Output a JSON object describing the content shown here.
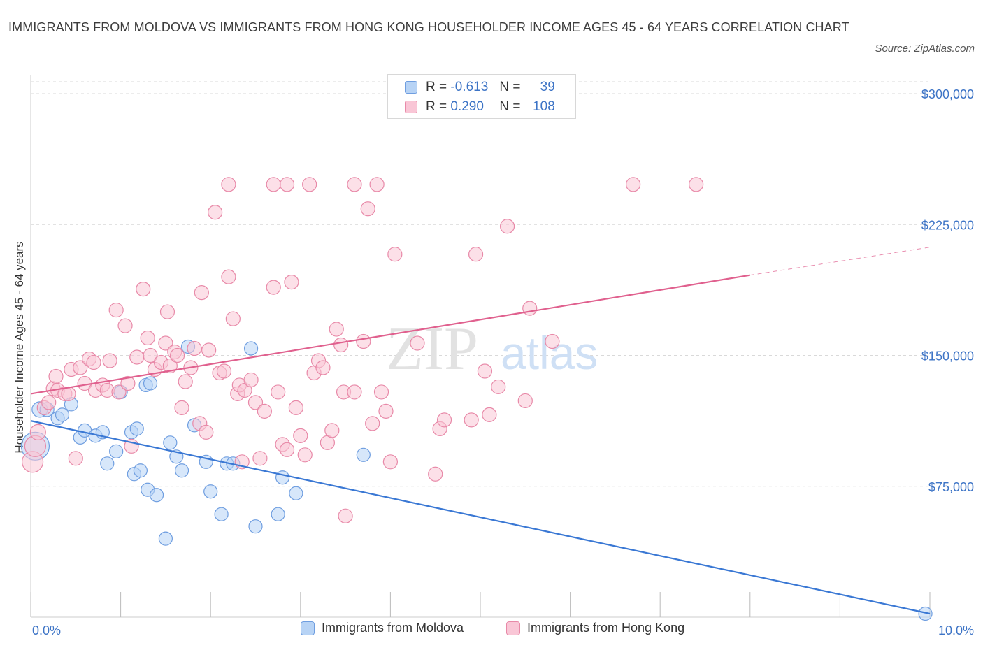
{
  "title": "IMMIGRANTS FROM MOLDOVA VS IMMIGRANTS FROM HONG KONG HOUSEHOLDER INCOME AGES 45 - 64 YEARS CORRELATION CHART",
  "source": "Source: ZipAtlas.com",
  "watermark": "ZIPatlas",
  "legend": {
    "r_label": "R =",
    "n_label": "N =",
    "rows": [
      {
        "r": "-0.613",
        "n": "39",
        "fill": "#b7d3f5",
        "stroke": "#6f9ee0"
      },
      {
        "r": "0.290",
        "n": "108",
        "fill": "#f9c6d6",
        "stroke": "#e889a8"
      }
    ]
  },
  "colors": {
    "blue_line": "#3a78d4",
    "pink_line": "#e0608e",
    "axis_text": "#3d74c6",
    "grid": "#d9d9d9"
  },
  "chart_data": {
    "type": "scatter",
    "xlabel": "",
    "ylabel": "Householder Income Ages 45 - 64 years",
    "xlim": [
      0,
      10
    ],
    "ylim": [
      0,
      300000
    ],
    "x_tick_labels": [
      "0.0%",
      "10.0%"
    ],
    "y_tick_labels": [
      "$75,000",
      "$150,000",
      "$225,000",
      "$300,000"
    ],
    "y_ticks": [
      75000,
      150000,
      225000,
      300000
    ],
    "grid": true,
    "legend_position": "top-center",
    "series": [
      {
        "name": "Immigrants from Moldova",
        "color": "#6f9ee0",
        "fill": "#b7d3f5",
        "trend": {
          "x": [
            0,
            10
          ],
          "y": [
            112500,
            2000
          ]
        },
        "points": [
          [
            0.05,
            98000,
            34
          ],
          [
            0.1,
            119000,
            16
          ],
          [
            0.18,
            119000,
            14
          ],
          [
            0.3,
            114000,
            13
          ],
          [
            0.35,
            116000,
            13
          ],
          [
            0.45,
            122000,
            13
          ],
          [
            0.55,
            103000,
            13
          ],
          [
            0.6,
            107000,
            13
          ],
          [
            0.72,
            104000,
            13
          ],
          [
            0.8,
            106000,
            13
          ],
          [
            0.85,
            88000,
            13
          ],
          [
            0.95,
            95000,
            13
          ],
          [
            1.0,
            129000,
            13
          ],
          [
            1.12,
            106000,
            13
          ],
          [
            1.15,
            82000,
            13
          ],
          [
            1.18,
            108000,
            13
          ],
          [
            1.22,
            84000,
            13
          ],
          [
            1.28,
            133000,
            13
          ],
          [
            1.3,
            73000,
            13
          ],
          [
            1.4,
            70000,
            13
          ],
          [
            1.5,
            45000,
            13
          ],
          [
            1.55,
            100000,
            13
          ],
          [
            1.62,
            92000,
            13
          ],
          [
            1.68,
            84000,
            13
          ],
          [
            1.75,
            155000,
            13
          ],
          [
            1.82,
            110000,
            13
          ],
          [
            1.95,
            89000,
            13
          ],
          [
            2.0,
            72000,
            13
          ],
          [
            2.12,
            59000,
            13
          ],
          [
            2.18,
            88000,
            13
          ],
          [
            2.25,
            88000,
            13
          ],
          [
            2.45,
            154000,
            13
          ],
          [
            2.5,
            52000,
            13
          ],
          [
            2.75,
            59000,
            13
          ],
          [
            2.8,
            80000,
            13
          ],
          [
            2.95,
            71000,
            13
          ],
          [
            3.7,
            93000,
            13
          ],
          [
            9.95,
            2000,
            13
          ],
          [
            1.33,
            134000,
            13
          ]
        ]
      },
      {
        "name": "Immigrants from Hong Kong",
        "color": "#e889a8",
        "fill": "#f9c6d6",
        "trend": {
          "x": [
            0,
            8
          ],
          "y": [
            128000,
            196000
          ],
          "dash_to": [
            10,
            212000
          ]
        },
        "points": [
          [
            0.02,
            89000,
            24
          ],
          [
            0.05,
            98000,
            24
          ],
          [
            0.08,
            106000,
            16
          ],
          [
            0.15,
            120000,
            14
          ],
          [
            0.2,
            123000,
            14
          ],
          [
            0.25,
            131000,
            14
          ],
          [
            0.28,
            138000,
            14
          ],
          [
            0.3,
            130000,
            14
          ],
          [
            0.38,
            128000,
            14
          ],
          [
            0.42,
            128000,
            14
          ],
          [
            0.45,
            142000,
            14
          ],
          [
            0.5,
            91000,
            14
          ],
          [
            0.55,
            143000,
            14
          ],
          [
            0.6,
            134000,
            14
          ],
          [
            0.65,
            148000,
            14
          ],
          [
            0.7,
            146000,
            14
          ],
          [
            0.72,
            130000,
            14
          ],
          [
            0.8,
            133000,
            14
          ],
          [
            0.85,
            130000,
            14
          ],
          [
            0.88,
            147000,
            14
          ],
          [
            0.95,
            176000,
            14
          ],
          [
            0.98,
            129000,
            14
          ],
          [
            1.05,
            167000,
            14
          ],
          [
            1.08,
            134000,
            14
          ],
          [
            1.12,
            98000,
            14
          ],
          [
            1.18,
            149000,
            14
          ],
          [
            1.25,
            188000,
            14
          ],
          [
            1.3,
            160000,
            14
          ],
          [
            1.33,
            150000,
            14
          ],
          [
            1.38,
            142000,
            14
          ],
          [
            1.45,
            146000,
            14
          ],
          [
            1.5,
            157000,
            14
          ],
          [
            1.52,
            175000,
            14
          ],
          [
            1.55,
            144000,
            14
          ],
          [
            1.6,
            152000,
            14
          ],
          [
            1.63,
            150000,
            14
          ],
          [
            1.68,
            120000,
            14
          ],
          [
            1.72,
            135000,
            14
          ],
          [
            1.78,
            143000,
            14
          ],
          [
            1.82,
            154000,
            14
          ],
          [
            1.88,
            111000,
            14
          ],
          [
            1.9,
            186000,
            14
          ],
          [
            1.95,
            106000,
            14
          ],
          [
            1.98,
            153000,
            14
          ],
          [
            2.05,
            232000,
            14
          ],
          [
            2.1,
            140000,
            14
          ],
          [
            2.15,
            141000,
            14
          ],
          [
            2.2,
            195000,
            14
          ],
          [
            2.25,
            171000,
            14
          ],
          [
            2.3,
            128000,
            14
          ],
          [
            2.32,
            133000,
            14
          ],
          [
            2.35,
            89000,
            14
          ],
          [
            2.38,
            130000,
            14
          ],
          [
            2.45,
            136000,
            14
          ],
          [
            2.5,
            123000,
            14
          ],
          [
            2.55,
            91000,
            14
          ],
          [
            2.6,
            118000,
            14
          ],
          [
            2.7,
            189000,
            14
          ],
          [
            2.75,
            129000,
            14
          ],
          [
            2.8,
            99000,
            14
          ],
          [
            2.85,
            96000,
            14
          ],
          [
            2.9,
            192000,
            14
          ],
          [
            2.95,
            120000,
            14
          ],
          [
            3.0,
            104000,
            14
          ],
          [
            3.05,
            93000,
            14
          ],
          [
            3.15,
            140000,
            14
          ],
          [
            3.2,
            147000,
            14
          ],
          [
            3.25,
            143000,
            14
          ],
          [
            3.3,
            100000,
            14
          ],
          [
            3.35,
            107000,
            14
          ],
          [
            3.4,
            165000,
            14
          ],
          [
            3.45,
            156000,
            14
          ],
          [
            3.48,
            129000,
            14
          ],
          [
            3.5,
            58000,
            14
          ],
          [
            3.6,
            129000,
            14
          ],
          [
            3.7,
            158000,
            14
          ],
          [
            3.75,
            234000,
            14
          ],
          [
            3.8,
            111000,
            14
          ],
          [
            3.9,
            129000,
            14
          ],
          [
            3.95,
            118000,
            14
          ],
          [
            4.0,
            89000,
            14
          ],
          [
            4.05,
            208000,
            14
          ],
          [
            4.3,
            157000,
            14
          ],
          [
            4.5,
            82000,
            14
          ],
          [
            4.55,
            108000,
            14
          ],
          [
            4.6,
            113000,
            14
          ],
          [
            4.9,
            113000,
            14
          ],
          [
            4.95,
            208000,
            14
          ],
          [
            5.05,
            141000,
            14
          ],
          [
            5.1,
            116000,
            14
          ],
          [
            5.2,
            132000,
            14
          ],
          [
            5.3,
            224000,
            14
          ],
          [
            5.5,
            124000,
            14
          ],
          [
            5.55,
            177000,
            14
          ],
          [
            5.8,
            158000,
            14
          ],
          [
            2.2,
            248000,
            14
          ],
          [
            2.7,
            248000,
            14
          ],
          [
            2.85,
            248000,
            14
          ],
          [
            3.1,
            248000,
            14
          ],
          [
            3.6,
            248000,
            14
          ],
          [
            3.85,
            248000,
            14
          ],
          [
            6.7,
            248000,
            14
          ],
          [
            7.4,
            248000,
            14
          ]
        ]
      }
    ]
  },
  "bottom_legend": [
    {
      "label": "Immigrants from Moldova",
      "fill": "#b7d3f5",
      "stroke": "#6f9ee0"
    },
    {
      "label": "Immigrants from Hong Kong",
      "fill": "#f9c6d6",
      "stroke": "#e889a8"
    }
  ]
}
